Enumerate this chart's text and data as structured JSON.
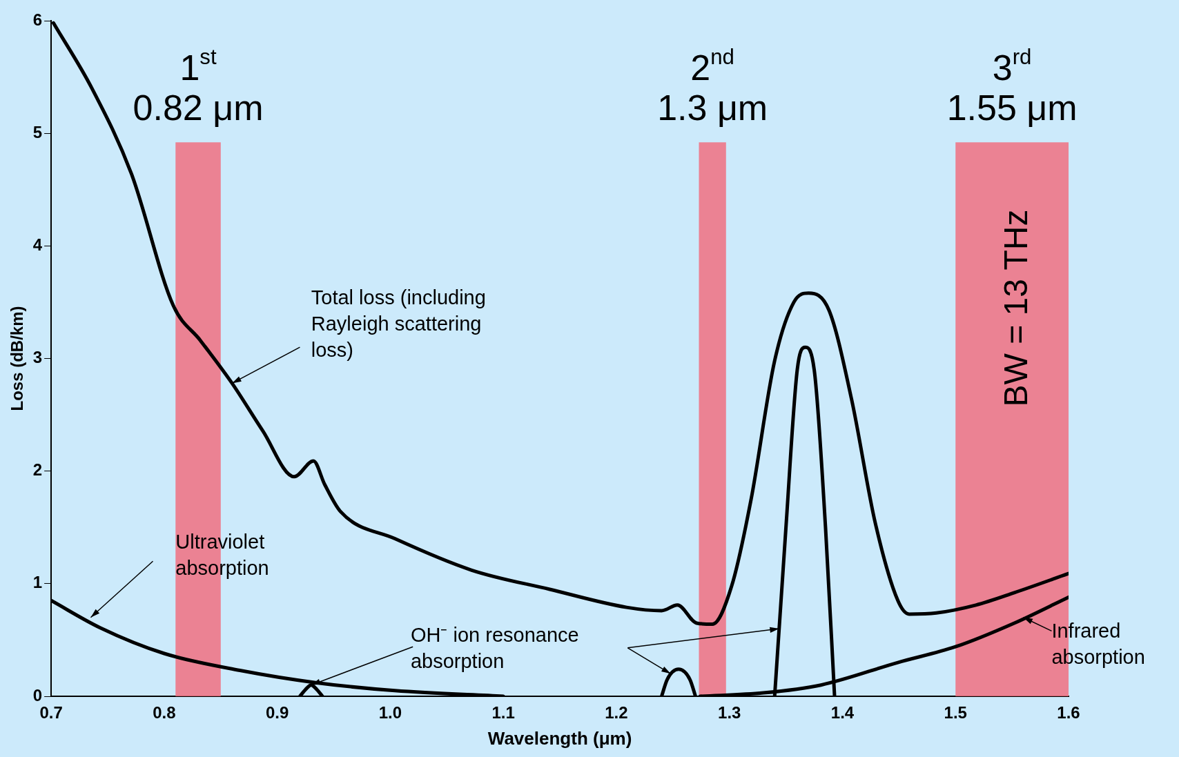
{
  "chart_data": {
    "type": "line",
    "xlabel": "Wavelength (μm)",
    "ylabel": "Loss (dB/km)",
    "xlim": [
      0.7,
      1.6
    ],
    "xticks": [
      0.7,
      0.8,
      0.9,
      {
        "value": 1,
        "label": "1.0"
      },
      1.1,
      1.2,
      1.3,
      1.4,
      1.5,
      1.6
    ],
    "ylim": [
      0,
      6
    ],
    "yticks": [
      0,
      1,
      2,
      3,
      4,
      5,
      6
    ],
    "grid": false,
    "legend": false,
    "marker": "none",
    "line_style": "solid",
    "series": [
      {
        "color": "#000000",
        "x": [
          0.702,
          0.736,
          0.771,
          0.808,
          0.832,
          0.86,
          0.887,
          0.915,
          0.932,
          0.942,
          0.956,
          1.004,
          1.072,
          1.141,
          1.209,
          1.24,
          1.254,
          1.271,
          1.285,
          1.302,
          1.319,
          1.34,
          1.357,
          1.37,
          1.388,
          1.408,
          1.429,
          1.449,
          1.459,
          1.483,
          1.518,
          1.552,
          1.6
        ],
        "values": [
          5.98,
          5.4,
          4.64,
          3.47,
          3.16,
          2.78,
          2.36,
          1.95,
          2.09,
          1.88,
          1.64,
          1.4,
          1.12,
          0.95,
          0.79,
          0.76,
          0.81,
          0.65,
          0.64,
          0.98,
          1.74,
          2.98,
          3.5,
          3.58,
          3.43,
          2.64,
          1.54,
          0.85,
          0.73,
          0.74,
          0.81,
          0.92,
          1.09
        ]
      },
      {
        "color": "#000000",
        "x": [
          0.7,
          0.743,
          0.8,
          0.867,
          0.935,
          1.004,
          1.1
        ],
        "values": [
          0.85,
          0.61,
          0.38,
          0.23,
          0.12,
          0.05,
          0
        ]
      },
      {
        "color": "#000000",
        "x": [
          1.274,
          1.33,
          1.381,
          1.449,
          1.5,
          1.552,
          1.6
        ],
        "values": [
          0,
          0.03,
          0.1,
          0.3,
          0.44,
          0.65,
          0.88
        ]
      },
      {
        "color": "#000000",
        "x": [
          0.92,
          0.925,
          0.93,
          0.935,
          0.94,
          0.941,
          1.24,
          1.245,
          1.255,
          1.265,
          1.27,
          1.271,
          1.34,
          1.35,
          1.36,
          1.367,
          1.375,
          1.385,
          1.393
        ],
        "values": [
          0,
          0.06,
          0.1,
          0.06,
          0,
          null,
          0,
          0.15,
          0.24,
          0.15,
          0,
          null,
          0,
          1.5,
          2.9,
          3.1,
          2.9,
          1.5,
          0
        ]
      }
    ],
    "bands": [
      {
        "axis": "x",
        "from": 0.81,
        "to": 0.85,
        "label": "1$^{st}$\n0.82 μm",
        "color": "#f07080"
      },
      {
        "axis": "x",
        "from": 1.273,
        "to": 1.297,
        "label": "2$^{nd}$\n1.3 μm",
        "color": "#f07080"
      },
      {
        "axis": "x",
        "from": 1.5,
        "to": 1.6,
        "label": "3$^{rd}$\n1.55 μm",
        "color": "#f07080"
      }
    ],
    "annotations": [
      {
        "text": "Total loss (including\nRayleigh scattering\nloss)",
        "x": 0.86,
        "y": 2.78
      },
      {
        "text": "Ultraviolet\nabsorption",
        "x": 0.735,
        "y": 0.7
      },
      {
        "text": "OH⁻ ion resonance\nabsorption",
        "x": 0.93,
        "y": 0.1
      },
      {
        "text": "Infrared\nabsorption",
        "x": 1.56,
        "y": 0.7
      },
      "BW = 13 THz"
    ]
  }
}
